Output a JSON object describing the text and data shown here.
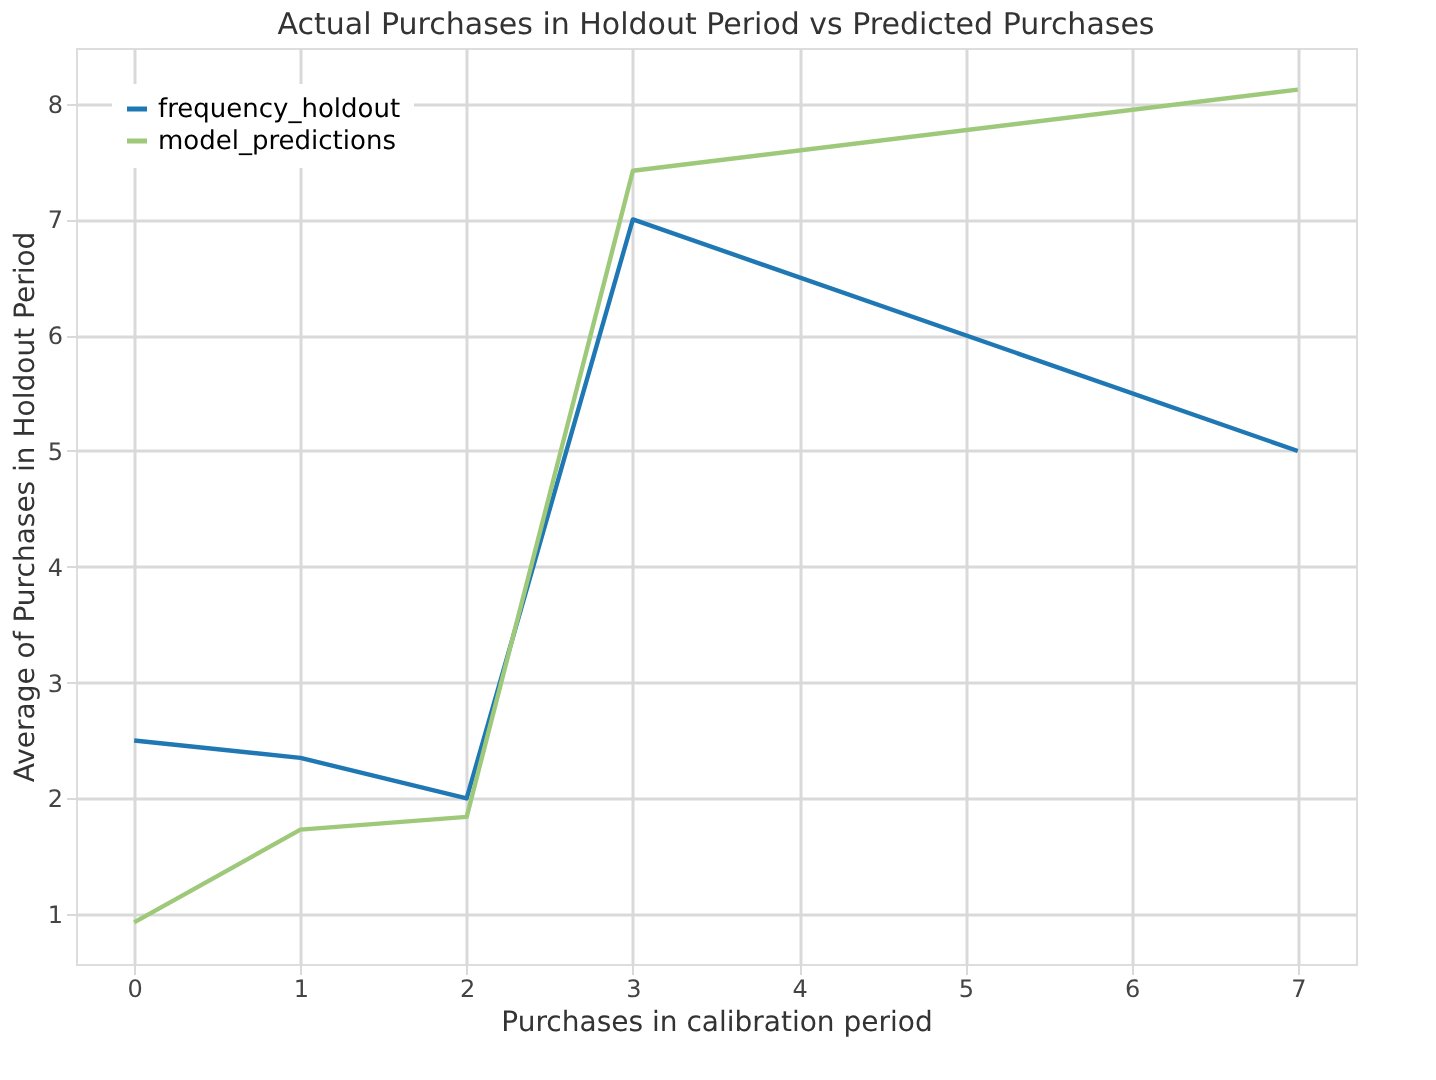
{
  "chart_data": {
    "type": "line",
    "title": "Actual Purchases in Holdout Period vs Predicted Purchases",
    "xlabel": "Purchases in calibration period",
    "ylabel": "Average of Purchases in Holdout Period",
    "x": [
      0,
      1,
      2,
      3,
      7
    ],
    "series": [
      {
        "name": "frequency_holdout",
        "color": "#1f78b4",
        "values": [
          2.5,
          2.35,
          2.0,
          7.0,
          5.0
        ]
      },
      {
        "name": "model_predictions",
        "color": "#9fc97a",
        "values": [
          0.93,
          1.73,
          1.84,
          7.42,
          8.12
        ]
      }
    ],
    "xlim": [
      -0.35,
      7.35
    ],
    "xticks": [
      0,
      1,
      2,
      3,
      4,
      5,
      6,
      7
    ],
    "ylim": [
      0.57,
      8.48
    ],
    "yticks": [
      1,
      2,
      3,
      4,
      5,
      6,
      7,
      8
    ],
    "grid": true,
    "legend": "top left",
    "marker": "none",
    "line_style": "solid"
  }
}
